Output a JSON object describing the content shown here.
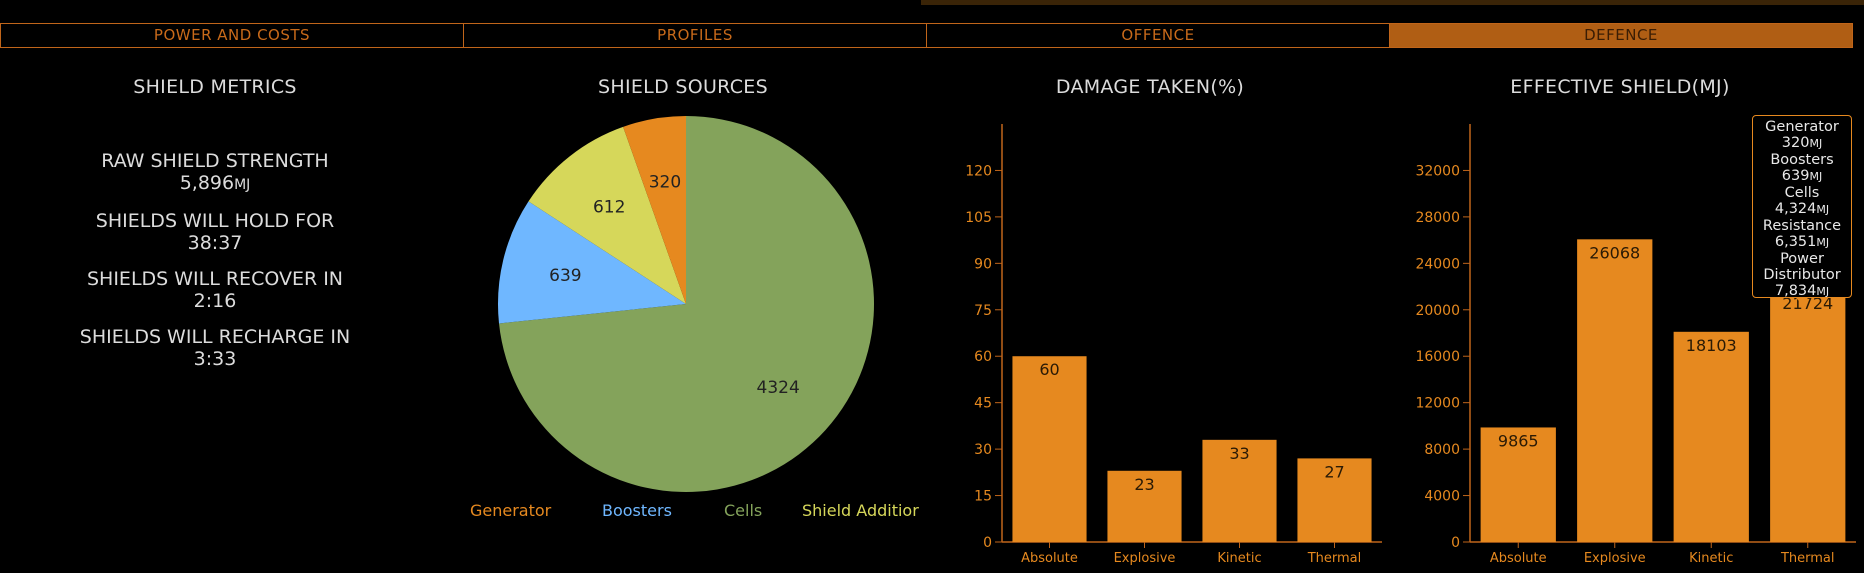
{
  "tabs": [
    {
      "label": "POWER AND COSTS",
      "active": false
    },
    {
      "label": "PROFILES",
      "active": false
    },
    {
      "label": "OFFENCE",
      "active": false
    },
    {
      "label": "DEFENCE",
      "active": true
    }
  ],
  "shield_metrics": {
    "title": "SHIELD METRICS",
    "raw_strength_label": "RAW SHIELD STRENGTH",
    "raw_strength_value": "5,896",
    "raw_strength_unit": "MJ",
    "hold_label": "SHIELDS WILL HOLD FOR",
    "hold_value": "38:37",
    "recover_label": "SHIELDS WILL RECOVER IN",
    "recover_value": "2:16",
    "recharge_label": "SHIELDS WILL RECHARGE IN",
    "recharge_value": "3:33"
  },
  "colors": {
    "accent": "#e6891f",
    "tab_border": "#c0651a",
    "generator": "#e6891f",
    "boosters": "#6fb7ff",
    "cells": "#84a35b",
    "shield_addition": "#d6d75a"
  },
  "chart_data": [
    {
      "type": "pie",
      "title": "SHIELD SOURCES",
      "series": [
        {
          "name": "Generator",
          "value": 320,
          "color": "#e6891f"
        },
        {
          "name": "Boosters",
          "value": 639,
          "color": "#6fb7ff"
        },
        {
          "name": "Cells",
          "value": 4324,
          "color": "#84a35b"
        },
        {
          "name": "Shield Additior",
          "value": 612,
          "color": "#d6d75a"
        }
      ]
    },
    {
      "type": "bar",
      "title": "DAMAGE TAKEN(%)",
      "categories": [
        "Absolute",
        "Explosive",
        "Kinetic",
        "Thermal"
      ],
      "values": [
        60,
        23,
        33,
        27
      ],
      "ylim": [
        0,
        135
      ],
      "yticks": [
        0,
        15,
        30,
        45,
        60,
        75,
        90,
        105,
        120
      ]
    },
    {
      "type": "bar",
      "title": "EFFECTIVE SHIELD(MJ)",
      "categories": [
        "Absolute",
        "Explosive",
        "Kinetic",
        "Thermal"
      ],
      "values": [
        9865,
        26068,
        18103,
        21724
      ],
      "ylim": [
        0,
        36000
      ],
      "yticks": [
        0,
        4000,
        8000,
        12000,
        16000,
        20000,
        24000,
        28000,
        32000
      ]
    }
  ],
  "tooltip": {
    "generator_label": "Generator",
    "generator_value": "320",
    "boosters_label": "Boosters",
    "boosters_value": "639",
    "cells_label": "Cells",
    "cells_value": "4,324",
    "resistance_label": "Resistance",
    "resistance_value": "6,351",
    "power_label_1": "Power",
    "power_label_2": "Distributor",
    "power_value": "7,834",
    "unit": "MJ"
  }
}
